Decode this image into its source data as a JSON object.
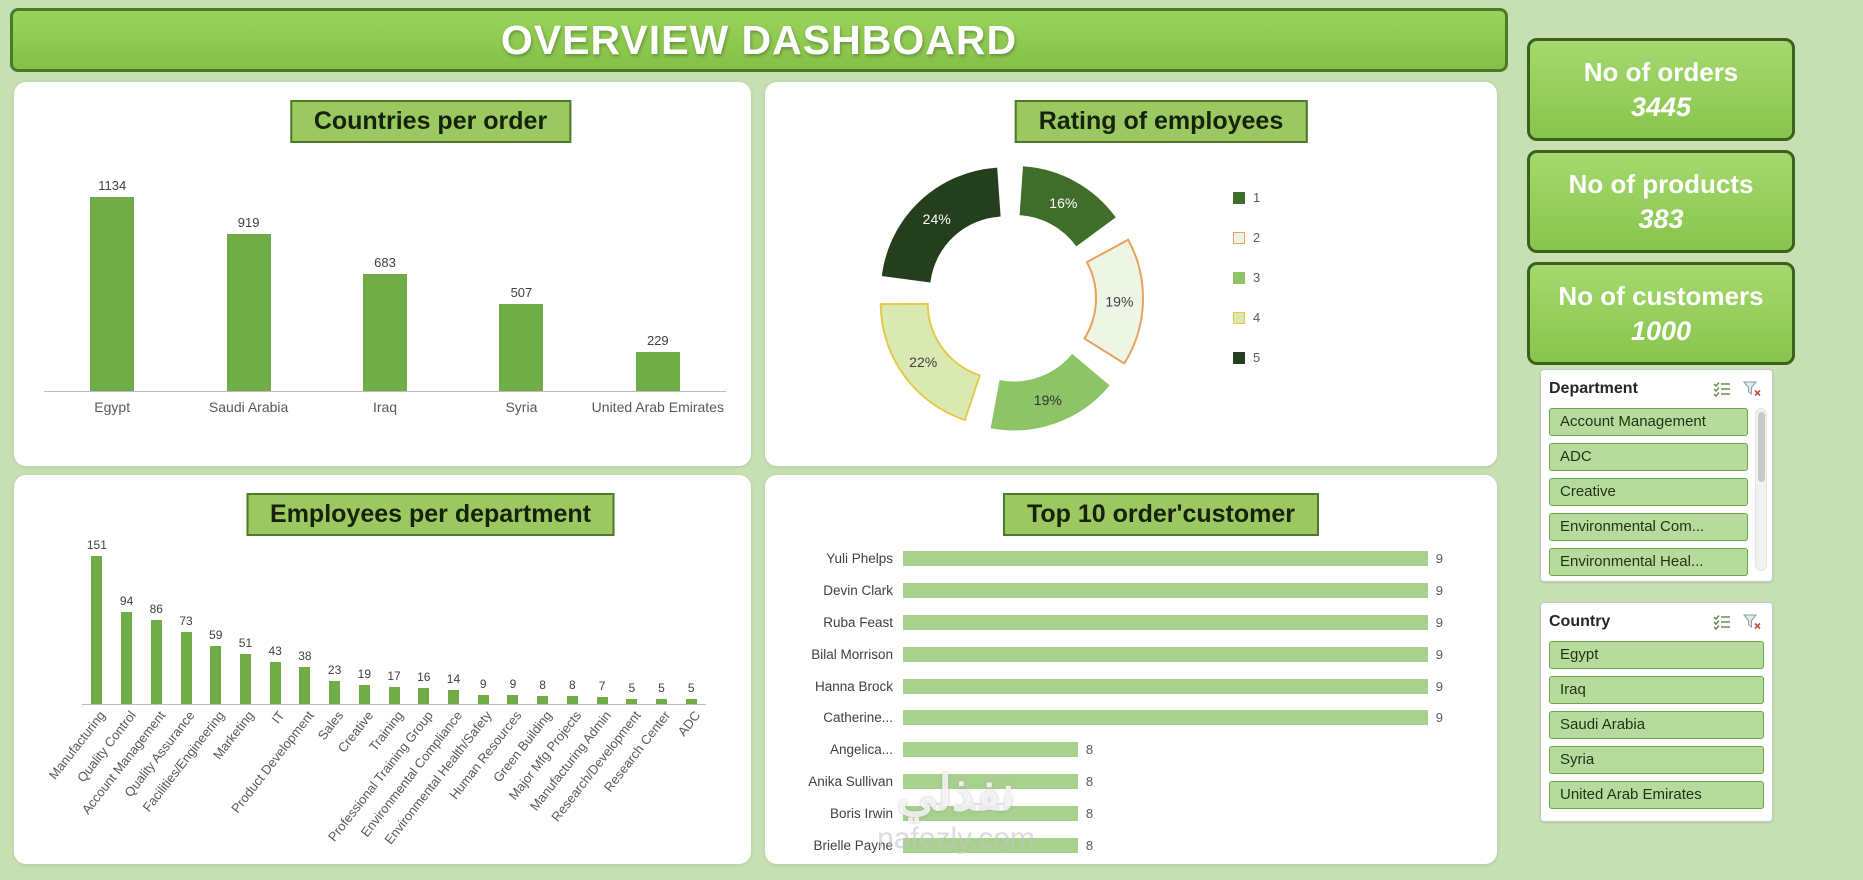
{
  "page": {
    "title": "OVERVIEW DASHBOARD",
    "bg_color": "#c6e0b4",
    "accent_green": "#70ad47",
    "title_bar_fill": "#8cc94f",
    "title_bar_border": "#4d7a28"
  },
  "kpis": [
    {
      "label": "No of orders",
      "value": "3445"
    },
    {
      "label": "No of products",
      "value": "383"
    },
    {
      "label": "No of customers",
      "value": "1000"
    }
  ],
  "slicers": [
    {
      "title": "Department",
      "items": [
        "Account Management",
        "ADC",
        "Creative",
        "Environmental Com...",
        "Environmental Heal..."
      ],
      "has_scrollbar": true
    },
    {
      "title": "Country",
      "items": [
        "Egypt",
        "Iraq",
        "Saudi Arabia",
        "Syria",
        "United Arab Emirates"
      ],
      "has_scrollbar": false
    }
  ],
  "watermark": {
    "line1": "نفذلي",
    "line2": "nafezly.com"
  },
  "chart_data": [
    {
      "type": "bar",
      "title": "Countries per order",
      "categories": [
        "Egypt",
        "Saudi Arabia",
        "Iraq",
        "Syria",
        "United Arab Emirates"
      ],
      "values": [
        1134,
        919,
        683,
        507,
        229
      ],
      "bar_color": "#70ad47",
      "data_labels": true,
      "xlabel": "",
      "ylabel": "",
      "ylim": [
        0,
        1200
      ],
      "grid": false,
      "legend_position": "none"
    },
    {
      "type": "pie",
      "subtype": "doughnut",
      "title": "Rating of employees",
      "categories": [
        "1",
        "2",
        "3",
        "4",
        "5"
      ],
      "values": [
        16,
        19,
        19,
        22,
        24
      ],
      "labels": [
        "16%",
        "19%",
        "19%",
        "22%",
        "24%"
      ],
      "colors": [
        "#3f6d2a",
        "#edf5e5",
        "#8cc466",
        "#d9e9b1",
        "#243f1d"
      ],
      "stroke_colors": [
        "#3f6d2a",
        "#e8a25e",
        "#8cc466",
        "#e6c94c",
        "#243f1d"
      ],
      "label_colors": [
        "#ffffff",
        "#404040",
        "#333333",
        "#404040",
        "#ffffff"
      ],
      "legend_position": "right"
    },
    {
      "type": "bar",
      "title": "Employees per department",
      "categories": [
        "Manufacturing",
        "Quality Control",
        "Account Management",
        "Quality Assurance",
        "Facilities/Engineering",
        "Marketing",
        "IT",
        "Product Development",
        "Sales",
        "Creative",
        "Training",
        "Professional Training Group",
        "Environmental Compliance",
        "Environmental Health/Safety",
        "Human Resources",
        "Green Building",
        "Major Mfg Projects",
        "Manufacturing Admin",
        "Research/Development",
        "Research Center",
        "ADC"
      ],
      "values": [
        151,
        94,
        86,
        73,
        59,
        51,
        43,
        38,
        23,
        19,
        17,
        16,
        14,
        9,
        9,
        8,
        8,
        7,
        5,
        5,
        5
      ],
      "bar_color": "#70ad47",
      "data_labels": true,
      "rotate_labels": true,
      "xlabel": "",
      "ylabel": "",
      "ylim": [
        0,
        160
      ],
      "grid": false,
      "legend_position": "none"
    },
    {
      "type": "bar",
      "subtype": "horizontal",
      "title": "Top 10 order'customer",
      "categories": [
        "Yuli Phelps",
        "Devin Clark",
        "Ruba Feast",
        "Bilal Morrison",
        "Hanna Brock",
        "Catherine...",
        "Angelica...",
        "Anika Sullivan",
        "Boris Irwin",
        "Brielle Payne"
      ],
      "values": [
        9,
        9,
        9,
        9,
        9,
        9,
        8,
        8,
        8,
        8
      ],
      "bar_color": "#a9d18e",
      "data_labels": true,
      "xlabel": "",
      "ylabel": "",
      "xlim": [
        7.5,
        9.05
      ],
      "grid": false,
      "legend_position": "none"
    }
  ]
}
